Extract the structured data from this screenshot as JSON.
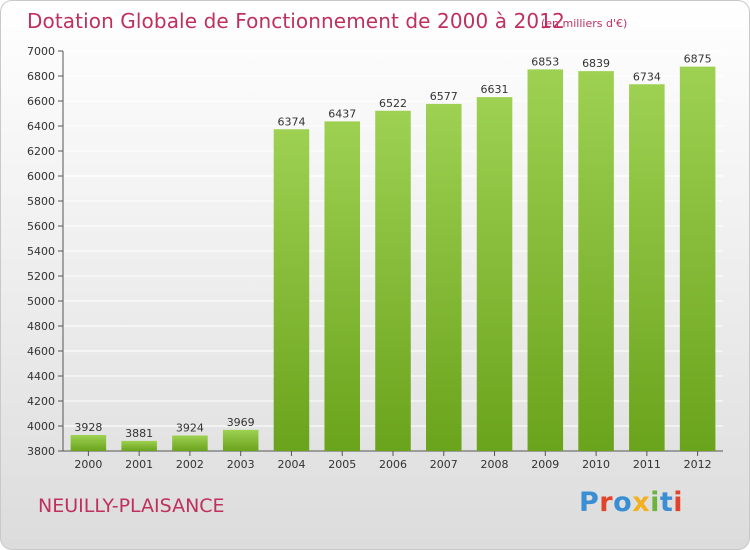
{
  "header": {
    "title": "Dotation Globale de Fonctionnement de 2000 à 2012",
    "subtitle": "(en milliers d'€)"
  },
  "footer": {
    "town": "NEUILLY-PLAISANCE",
    "logo_text": "Proxiti",
    "logo_colors": [
      "#3a8fd4",
      "#e0452b",
      "#3a8fd4",
      "#f2b01e",
      "#6db33f",
      "#3a8fd4",
      "#e0452b"
    ]
  },
  "colors": {
    "bar_light": "#9ed152",
    "bar_dark": "#6aa31c",
    "title": "#c0305e",
    "axis_text": "#333333",
    "grid": "#ffffff"
  },
  "chart_data": {
    "type": "bar",
    "title": "Dotation Globale de Fonctionnement de 2000 à 2012",
    "subtitle": "(en milliers d'€)",
    "xlabel": "",
    "ylabel": "",
    "categories": [
      "2000",
      "2001",
      "2002",
      "2003",
      "2004",
      "2005",
      "2006",
      "2007",
      "2008",
      "2009",
      "2010",
      "2011",
      "2012"
    ],
    "values": [
      3928,
      3881,
      3924,
      3969,
      6374,
      6437,
      6522,
      6577,
      6631,
      6853,
      6839,
      6734,
      6875
    ],
    "ylim": [
      3800,
      7000
    ],
    "yticks": [
      3800,
      4000,
      4200,
      4400,
      4600,
      4800,
      5000,
      5200,
      5400,
      5600,
      5800,
      6000,
      6200,
      6400,
      6600,
      6800,
      7000
    ],
    "grid": true,
    "data_labels": true
  }
}
